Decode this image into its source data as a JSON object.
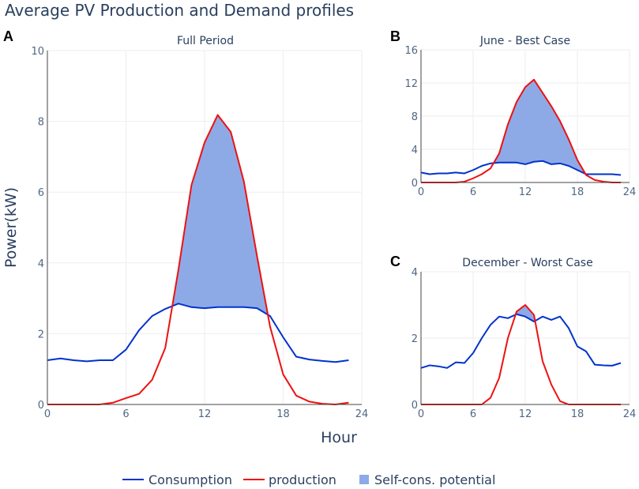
{
  "title": "Average PV Production and Demand profiles",
  "legend": [
    {
      "label": "Consumption",
      "kind": "line",
      "color": "#0033cc"
    },
    {
      "label": "production",
      "kind": "line",
      "color": "#ee1111"
    },
    {
      "label": "Self-cons. potential",
      "kind": "fill",
      "color": "#8eaae6"
    }
  ],
  "colors": {
    "consumption": "#0033cc",
    "production": "#ee1111",
    "fill": "#8eaae6"
  },
  "chart_data": [
    {
      "type": "line",
      "panel": "A",
      "title": "Full Period",
      "xlabel": "Hour",
      "ylabel": "Power(kW)",
      "xlim": [
        0,
        24
      ],
      "ylim": [
        0,
        10
      ],
      "xticks": [
        0,
        6,
        12,
        18,
        24
      ],
      "yticks": [
        0,
        2,
        4,
        6,
        8,
        10
      ],
      "x": [
        0,
        1,
        2,
        3,
        4,
        5,
        6,
        7,
        8,
        9,
        10,
        11,
        12,
        13,
        14,
        15,
        16,
        17,
        18,
        19,
        20,
        21,
        22,
        23
      ],
      "series": [
        {
          "name": "Consumption",
          "values": [
            1.25,
            1.3,
            1.25,
            1.22,
            1.25,
            1.25,
            1.55,
            2.1,
            2.5,
            2.7,
            2.85,
            2.75,
            2.72,
            2.75,
            2.75,
            2.75,
            2.72,
            2.5,
            1.9,
            1.35,
            1.27,
            1.23,
            1.2,
            1.25
          ]
        },
        {
          "name": "production",
          "values": [
            0,
            0,
            0,
            0,
            0,
            0.05,
            0.18,
            0.3,
            0.7,
            1.6,
            3.8,
            6.2,
            7.4,
            8.18,
            7.7,
            6.3,
            4.2,
            2.2,
            0.85,
            0.25,
            0.08,
            0.02,
            0,
            0.05
          ]
        }
      ]
    },
    {
      "type": "line",
      "panel": "B",
      "title": "June - Best Case",
      "xlim": [
        0,
        24
      ],
      "ylim": [
        0,
        16
      ],
      "xticks": [
        0,
        6,
        12,
        18,
        24
      ],
      "yticks": [
        0,
        4,
        8,
        12,
        16
      ],
      "x": [
        0,
        1,
        2,
        3,
        4,
        5,
        6,
        7,
        8,
        9,
        10,
        11,
        12,
        13,
        14,
        15,
        16,
        17,
        18,
        19,
        20,
        21,
        22,
        23
      ],
      "series": [
        {
          "name": "Consumption",
          "values": [
            1.2,
            1.0,
            1.1,
            1.1,
            1.2,
            1.1,
            1.5,
            2.0,
            2.3,
            2.4,
            2.4,
            2.4,
            2.2,
            2.5,
            2.6,
            2.2,
            2.3,
            2.0,
            1.5,
            1.0,
            1.0,
            1.0,
            1.0,
            0.9
          ]
        },
        {
          "name": "production",
          "values": [
            0,
            0,
            0,
            0,
            0,
            0.1,
            0.5,
            1.0,
            1.7,
            3.5,
            7.0,
            9.7,
            11.5,
            12.4,
            10.8,
            9.2,
            7.4,
            5.2,
            2.7,
            0.9,
            0.3,
            0.1,
            0,
            0
          ]
        }
      ]
    },
    {
      "type": "line",
      "panel": "C",
      "title": "December - Worst Case",
      "xlim": [
        0,
        24
      ],
      "ylim": [
        0,
        4
      ],
      "xticks": [
        0,
        6,
        12,
        18,
        24
      ],
      "yticks": [
        0,
        2,
        4
      ],
      "x": [
        0,
        1,
        2,
        3,
        4,
        5,
        6,
        7,
        8,
        9,
        10,
        11,
        12,
        13,
        14,
        15,
        16,
        17,
        18,
        19,
        20,
        21,
        22,
        23
      ],
      "series": [
        {
          "name": "Consumption",
          "values": [
            1.1,
            1.18,
            1.15,
            1.1,
            1.27,
            1.25,
            1.55,
            2.0,
            2.4,
            2.65,
            2.6,
            2.72,
            2.65,
            2.5,
            2.65,
            2.55,
            2.65,
            2.3,
            1.75,
            1.6,
            1.2,
            1.18,
            1.17,
            1.25
          ]
        },
        {
          "name": "production",
          "values": [
            0,
            0,
            0,
            0,
            0,
            0,
            0,
            0,
            0.2,
            0.8,
            2.0,
            2.8,
            3.0,
            2.7,
            1.3,
            0.6,
            0.1,
            0,
            0,
            0,
            0,
            0,
            0,
            0
          ]
        }
      ]
    }
  ]
}
